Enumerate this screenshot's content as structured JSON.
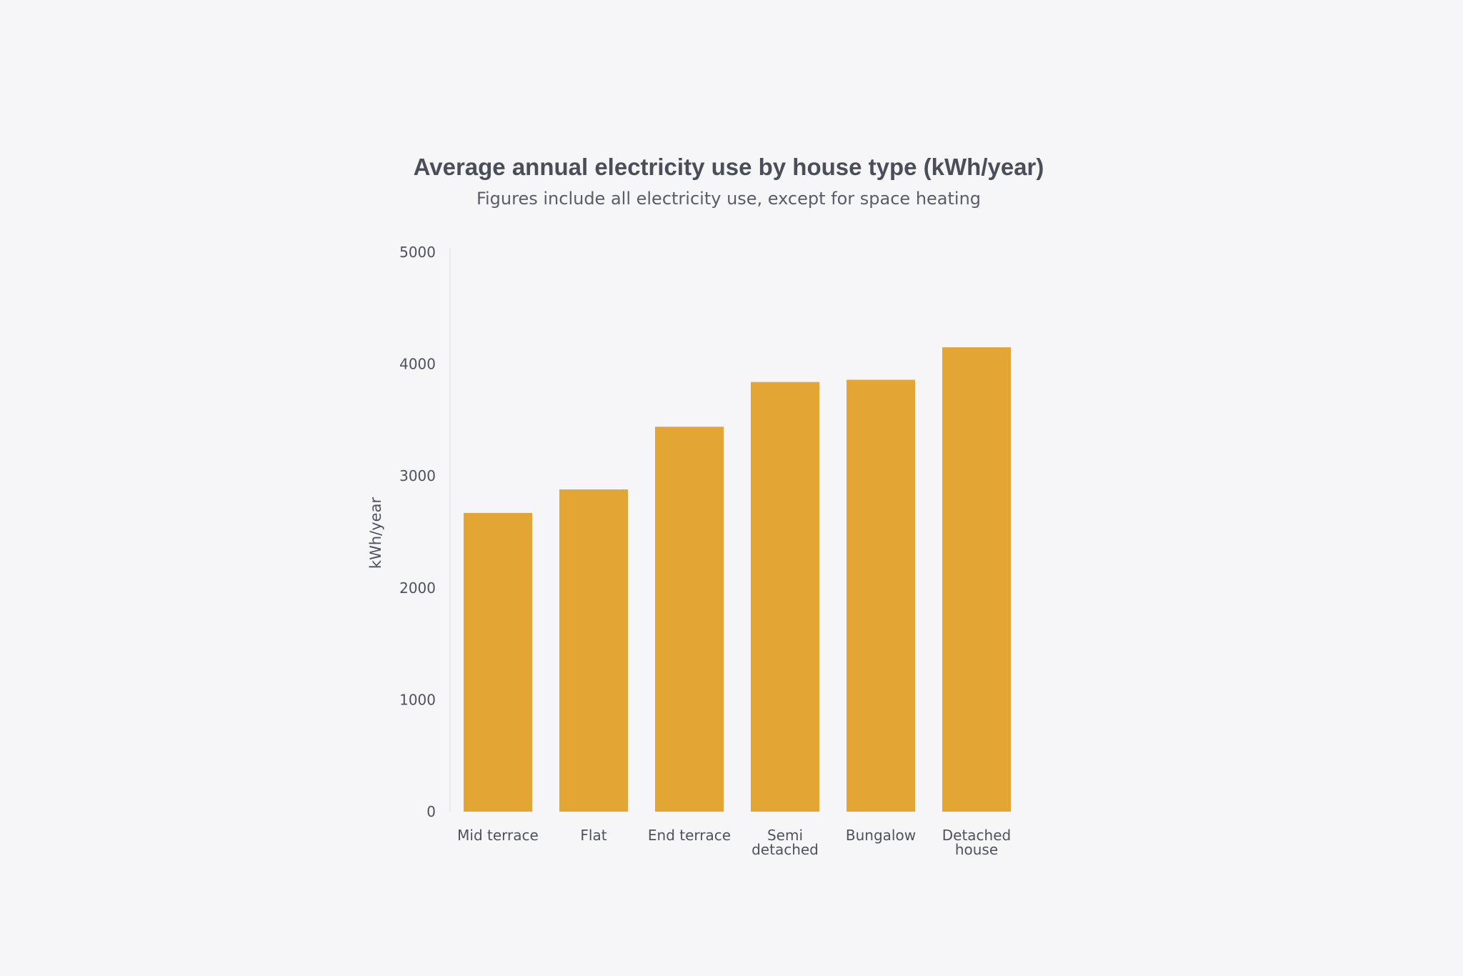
{
  "chart_data": {
    "type": "bar",
    "title": "Average annual electricity use by house type (kWh/year)",
    "subtitle": "Figures include all electricity use, except for space heating",
    "ylabel": "kWh/year",
    "xlabel": "",
    "ylim": [
      0,
      5000
    ],
    "yticks": [
      "0",
      "1000",
      "2000",
      "3000",
      "4000",
      "5000"
    ],
    "categories": [
      [
        "Mid terrace"
      ],
      [
        "Flat"
      ],
      [
        "End terrace"
      ],
      [
        "Semi",
        "detached"
      ],
      [
        "Bungalow"
      ],
      [
        "Detached",
        "house"
      ]
    ],
    "values": [
      2670,
      2880,
      3440,
      3840,
      3860,
      4150
    ],
    "bar_color": "#e3a534",
    "grid": false,
    "legend": "none"
  }
}
